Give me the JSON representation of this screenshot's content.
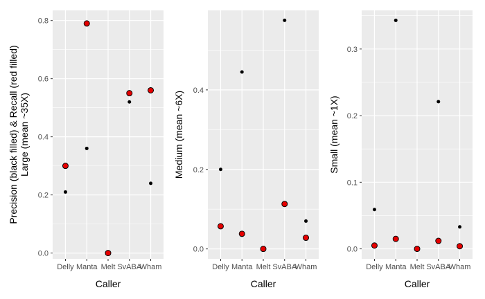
{
  "chart_data": [
    {
      "type": "scatter",
      "categories": [
        "Delly",
        "Manta",
        "Melt",
        "SvABA",
        "Wham"
      ],
      "xlabel": "Caller",
      "ylabel_lines": [
        "Precision (black filled) & Recall (red filled)",
        "Large (mean ~35X)"
      ],
      "ylim": [
        -0.02,
        0.835
      ],
      "yticks": [
        0.0,
        0.2,
        0.4,
        0.6,
        0.8
      ],
      "ytick_labels": [
        "0.0",
        "0.2",
        "0.4",
        "0.6",
        "0.8"
      ],
      "grid": true,
      "series": [
        {
          "color": "#000000",
          "marker": "small-dot",
          "values": [
            0.21,
            0.36,
            null,
            0.52,
            0.24
          ]
        },
        {
          "color": "#e60000",
          "marker": "filled-circle-outlined",
          "values": [
            0.3,
            0.79,
            0.0,
            0.55,
            0.56
          ]
        }
      ]
    },
    {
      "type": "scatter",
      "categories": [
        "Delly",
        "Manta",
        "Melt",
        "SvABA",
        "Wham"
      ],
      "xlabel": "Caller",
      "ylabel_lines": [
        "Medium (mean ~6X)"
      ],
      "ylim": [
        -0.025,
        0.6
      ],
      "yticks": [
        0.0,
        0.2,
        0.4
      ],
      "ytick_labels": [
        "0.0",
        "0.2",
        "0.4"
      ],
      "grid": true,
      "series": [
        {
          "color": "#000000",
          "marker": "small-dot",
          "values": [
            0.2,
            0.445,
            null,
            0.575,
            0.07
          ]
        },
        {
          "color": "#e60000",
          "marker": "filled-circle-outlined",
          "values": [
            0.057,
            0.038,
            0.0,
            0.113,
            0.028
          ]
        }
      ]
    },
    {
      "type": "scatter",
      "categories": [
        "Delly",
        "Manta",
        "Melt",
        "SvABA",
        "Wham"
      ],
      "xlabel": "Caller",
      "ylabel_lines": [
        "Small (mean ~1X)"
      ],
      "ylim": [
        -0.015,
        0.358
      ],
      "yticks": [
        0.0,
        0.1,
        0.2,
        0.3
      ],
      "ytick_labels": [
        "0.0",
        "0.1",
        "0.2",
        "0.3"
      ],
      "grid": true,
      "series": [
        {
          "color": "#000000",
          "marker": "small-dot",
          "values": [
            0.059,
            0.343,
            null,
            0.221,
            0.033
          ]
        },
        {
          "color": "#e60000",
          "marker": "filled-circle-outlined",
          "values": [
            0.005,
            0.015,
            0.0,
            0.012,
            0.004
          ]
        }
      ]
    }
  ]
}
